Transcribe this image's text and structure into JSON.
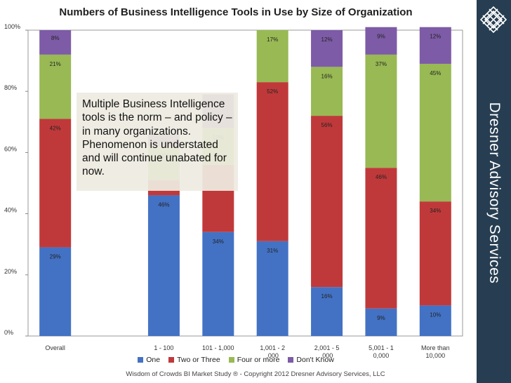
{
  "chart_data": {
    "type": "bar",
    "stacked": true,
    "title": "Numbers of Business Intelligence Tools in Use by Size of Organization",
    "categories": [
      "Overall",
      "",
      "1 - 100",
      "101 - 1,000",
      "1,001 - 2,000",
      "2,001 - 5,000",
      "5,001 - 10,000",
      "More than 10,000"
    ],
    "series": [
      {
        "name": "One",
        "color": "#4372c4",
        "values": [
          29,
          null,
          46,
          34,
          31,
          16,
          9,
          10
        ]
      },
      {
        "name": "Two or Three",
        "color": "#c0393a",
        "values": [
          42,
          null,
          5,
          22,
          52,
          56,
          46,
          34
        ]
      },
      {
        "name": "Four or more",
        "color": "#98b954",
        "values": [
          21,
          null,
          11,
          12,
          17,
          16,
          37,
          45
        ]
      },
      {
        "name": "Don't Know",
        "color": "#7d5ba6",
        "values": [
          8,
          null,
          4,
          11,
          0,
          12,
          9,
          12
        ]
      }
    ],
    "data_labels": [
      {
        "category": 0,
        "series": 0,
        "text": "29%"
      },
      {
        "category": 0,
        "series": 1,
        "text": "42%"
      },
      {
        "category": 0,
        "series": 2,
        "text": "21%"
      },
      {
        "category": 0,
        "series": 3,
        "text": "8%"
      },
      {
        "category": 2,
        "series": 0,
        "text": "46%"
      },
      {
        "category": 2,
        "series": 2,
        "text": "11%"
      },
      {
        "category": 2,
        "series": 3,
        "text": "4%"
      },
      {
        "category": 3,
        "series": 0,
        "text": "34%"
      },
      {
        "category": 3,
        "series": 2,
        "text": "12%"
      },
      {
        "category": 3,
        "series": 3,
        "text": "11%"
      },
      {
        "category": 4,
        "series": 0,
        "text": "31%"
      },
      {
        "category": 4,
        "series": 1,
        "text": "52%"
      },
      {
        "category": 4,
        "series": 2,
        "text": "17%"
      },
      {
        "category": 5,
        "series": 0,
        "text": "16%"
      },
      {
        "category": 5,
        "series": 1,
        "text": "56%"
      },
      {
        "category": 5,
        "series": 2,
        "text": "16%"
      },
      {
        "category": 5,
        "series": 3,
        "text": "12%"
      },
      {
        "category": 6,
        "series": 0,
        "text": "9%"
      },
      {
        "category": 6,
        "series": 1,
        "text": "46%"
      },
      {
        "category": 6,
        "series": 2,
        "text": "37%"
      },
      {
        "category": 6,
        "series": 3,
        "text": "9%"
      },
      {
        "category": 7,
        "series": 0,
        "text": "10%"
      },
      {
        "category": 7,
        "series": 1,
        "text": "34%"
      },
      {
        "category": 7,
        "series": 2,
        "text": "45%"
      },
      {
        "category": 7,
        "series": 3,
        "text": "12%"
      }
    ],
    "y_ticks": [
      "0%",
      "20%",
      "40%",
      "60%",
      "80%",
      "100%"
    ],
    "ylim": [
      0,
      100
    ],
    "xlabel": "",
    "ylabel": "",
    "legend_position": "bottom"
  },
  "callout_text": "Multiple Business Intelligence tools is the norm – and policy – in many organizations.  Phenomenon is understated and will continue unabated for now.",
  "brand_text": "Dresner Advisory Services",
  "footer_text": "Wisdom of Crowds BI Market Study ® - Copyright 2012 Dresner Advisory Services, LLC",
  "colors": {
    "sidebar": "#273e52",
    "callout_bg": "#eeece1"
  }
}
